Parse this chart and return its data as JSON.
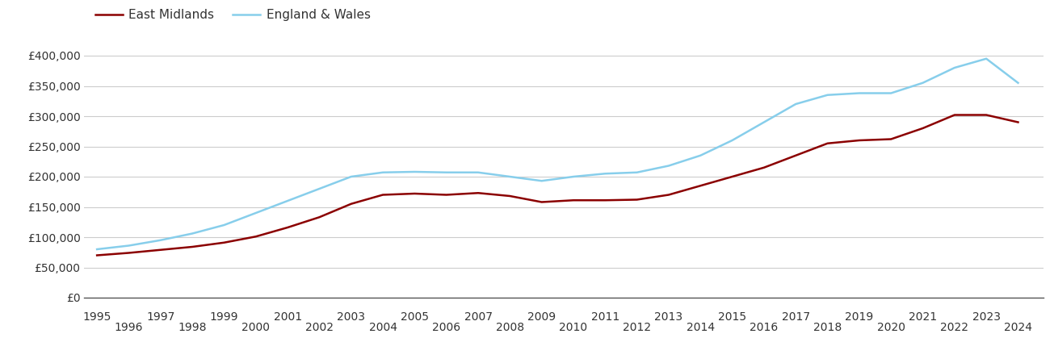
{
  "years": [
    1995,
    1996,
    1997,
    1998,
    1999,
    2000,
    2001,
    2002,
    2003,
    2004,
    2005,
    2006,
    2007,
    2008,
    2009,
    2010,
    2011,
    2012,
    2013,
    2014,
    2015,
    2016,
    2017,
    2018,
    2019,
    2020,
    2021,
    2022,
    2023,
    2024
  ],
  "east_midlands": [
    70000,
    74000,
    79000,
    84000,
    91000,
    101000,
    116000,
    133000,
    155000,
    170000,
    172000,
    170000,
    173000,
    168000,
    158000,
    161000,
    161000,
    162000,
    170000,
    185000,
    200000,
    215000,
    235000,
    255000,
    260000,
    262000,
    280000,
    302000,
    302000,
    290000
  ],
  "england_wales": [
    80000,
    86000,
    95000,
    106000,
    120000,
    140000,
    160000,
    180000,
    200000,
    207000,
    208000,
    207000,
    207000,
    200000,
    193000,
    200000,
    205000,
    207000,
    218000,
    235000,
    260000,
    290000,
    320000,
    335000,
    338000,
    338000,
    355000,
    380000,
    395000,
    355000
  ],
  "em_color": "#8B0000",
  "ew_color": "#87CEEB",
  "em_label": "East Midlands",
  "ew_label": "England & Wales",
  "ylim": [
    0,
    420000
  ],
  "yticks": [
    0,
    50000,
    100000,
    150000,
    200000,
    250000,
    300000,
    350000,
    400000
  ],
  "ytick_labels": [
    "£0",
    "£50,000",
    "£100,000",
    "£150,000",
    "£200,000",
    "£250,000",
    "£300,000",
    "£350,000",
    "£400,000"
  ],
  "line_width": 1.8,
  "bg_color": "#ffffff",
  "grid_color": "#cccccc",
  "legend_fontsize": 11,
  "tick_fontsize": 10,
  "xlim_left": 1994.6,
  "xlim_right": 2024.8
}
